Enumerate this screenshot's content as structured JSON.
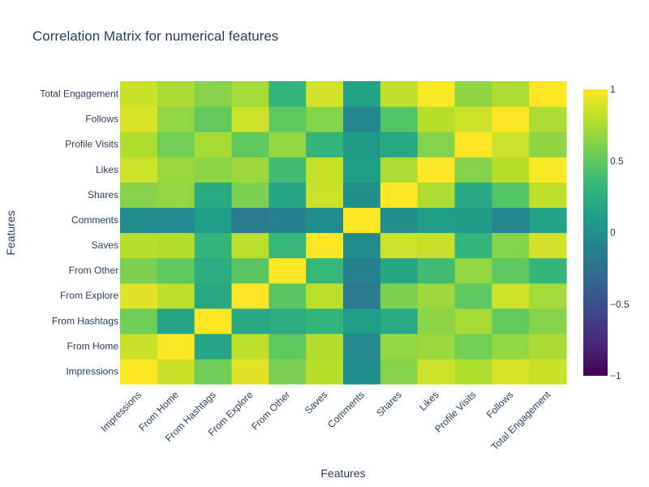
{
  "chart_data": {
    "type": "heatmap",
    "title": "Correlation Matrix for numerical features",
    "xlabel": "Features",
    "ylabel": "Features",
    "x_categories": [
      "Impressions",
      "From Home",
      "From Hashtags",
      "From Explore",
      "From Other",
      "Saves",
      "Comments",
      "Shares",
      "Likes",
      "Profile Visits",
      "Follows",
      "Total Engagement"
    ],
    "y_categories": [
      "Impressions",
      "From Home",
      "From Hashtags",
      "From Explore",
      "From Other",
      "Saves",
      "Comments",
      "Shares",
      "Likes",
      "Profile Visits",
      "Follows",
      "Total Engagement"
    ],
    "z": [
      [
        1.0,
        0.84,
        0.56,
        0.91,
        0.59,
        0.78,
        -0.03,
        0.63,
        0.85,
        0.76,
        0.89,
        0.84
      ],
      [
        0.84,
        1.0,
        0.17,
        0.8,
        0.5,
        0.77,
        -0.05,
        0.67,
        0.69,
        0.57,
        0.67,
        0.74
      ],
      [
        0.56,
        0.17,
        1.0,
        0.19,
        0.24,
        0.31,
        0.1,
        0.2,
        0.65,
        0.73,
        0.51,
        0.63
      ],
      [
        0.91,
        0.8,
        0.19,
        1.0,
        0.48,
        0.79,
        -0.16,
        0.59,
        0.7,
        0.5,
        0.85,
        0.72
      ],
      [
        0.59,
        0.5,
        0.24,
        0.48,
        1.0,
        0.33,
        -0.12,
        0.18,
        0.38,
        0.67,
        0.5,
        0.32
      ],
      [
        0.78,
        0.77,
        0.31,
        0.79,
        0.33,
        1.0,
        -0.03,
        0.85,
        0.83,
        0.31,
        0.63,
        0.87
      ],
      [
        -0.03,
        -0.05,
        0.1,
        -0.16,
        -0.12,
        -0.03,
        1.0,
        -0.01,
        0.12,
        0.09,
        -0.08,
        0.15
      ],
      [
        0.63,
        0.67,
        0.2,
        0.59,
        0.18,
        0.85,
        -0.01,
        1.0,
        0.75,
        0.19,
        0.46,
        0.81
      ],
      [
        0.85,
        0.69,
        0.65,
        0.7,
        0.38,
        0.83,
        0.12,
        0.75,
        1.0,
        0.62,
        0.78,
        0.99
      ],
      [
        0.76,
        0.57,
        0.73,
        0.5,
        0.67,
        0.31,
        0.09,
        0.19,
        0.62,
        1.0,
        0.85,
        0.66
      ],
      [
        0.89,
        0.67,
        0.51,
        0.85,
        0.5,
        0.63,
        -0.08,
        0.46,
        0.78,
        0.85,
        1.0,
        0.75
      ],
      [
        0.84,
        0.74,
        0.63,
        0.72,
        0.32,
        0.87,
        0.15,
        0.81,
        0.99,
        0.66,
        0.75,
        1.0
      ]
    ],
    "zmin": -1,
    "zmax": 1,
    "colorscale": "viridis",
    "colorbar_ticks": [
      "1",
      "0.5",
      "0",
      "−0.5",
      "−1"
    ],
    "colorbar_tick_values": [
      1,
      0.5,
      0,
      -0.5,
      -1
    ]
  }
}
